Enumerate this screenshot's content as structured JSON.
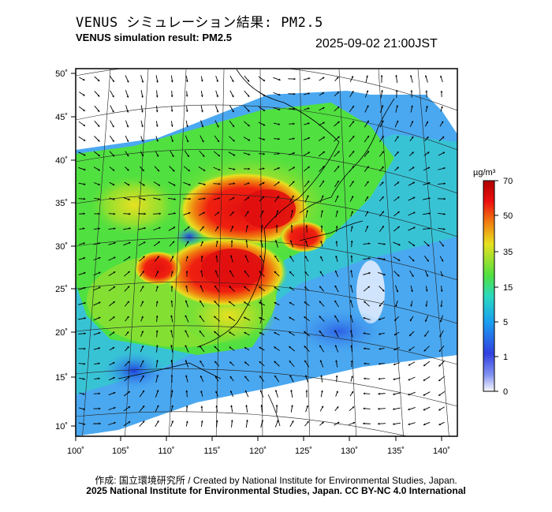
{
  "header": {
    "title_jp": "VENUS シミュレーション結果: PM2.5",
    "title_en": "VENUS simulation result: PM2.5",
    "timestamp": "2025-09-02 21:00JST"
  },
  "map": {
    "lon_labels": [
      "100˚",
      "105˚",
      "110˚",
      "115˚",
      "120˚",
      "125˚",
      "130˚",
      "135˚",
      "140˚"
    ],
    "lat_labels": [
      "50˚",
      "45˚",
      "40˚",
      "35˚",
      "30˚",
      "25˚",
      "20˚",
      "15˚",
      "10˚"
    ],
    "lon_values": [
      100,
      105,
      110,
      115,
      120,
      125,
      130,
      135,
      140
    ],
    "lat_values": [
      50,
      45,
      40,
      35,
      30,
      25,
      20,
      15,
      10
    ]
  },
  "colorbar": {
    "unit": "µg/m³",
    "ticks": [
      "70",
      "50",
      "35",
      "15",
      "5",
      "1",
      "0"
    ],
    "colors": [
      "#f8f8ff",
      "#3040e0",
      "#1a9ff0",
      "#2ad8c0",
      "#50e040",
      "#e8e020",
      "#f08010",
      "#ee1010",
      "#b00000"
    ]
  },
  "footer": {
    "credit_line": "作成: 国立環境研究所 / Created by National Institute for Environmental Studies, Japan.",
    "copyright_line": "2025 National Institute for Environmental Studies, Japan. CC BY-NC 4.0 International"
  }
}
